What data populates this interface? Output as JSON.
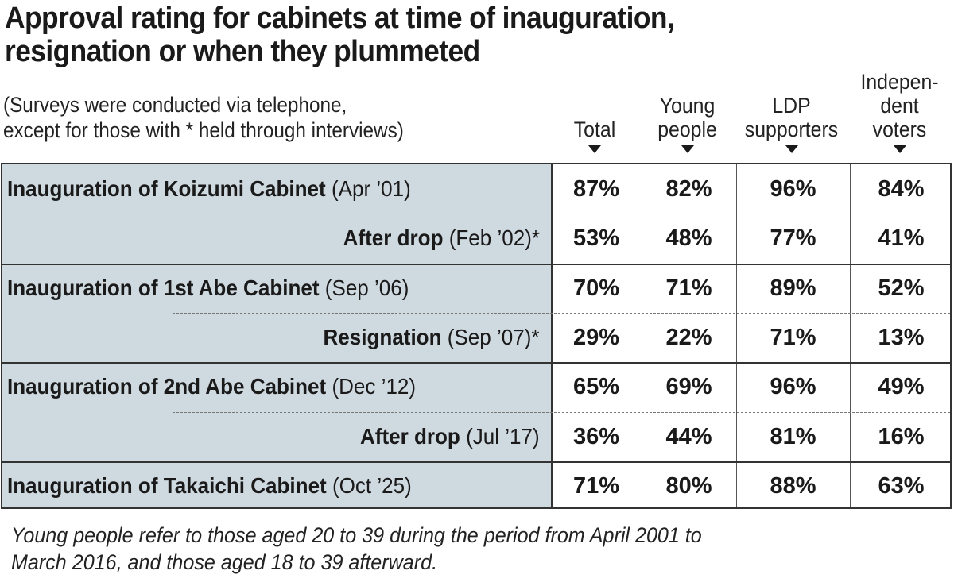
{
  "chart_data": {
    "type": "table",
    "title_line1": "Approval rating for cabinets at time of inauguration,",
    "title_line2": "resignation or when they plummeted",
    "subtitle_line1": "(Surveys were conducted via telephone,",
    "subtitle_line2": "except for those with * held through interviews)",
    "columns": [
      {
        "line1": "",
        "line2": "",
        "line3": "Total"
      },
      {
        "line1": "",
        "line2": "Young",
        "line3": "people"
      },
      {
        "line1": "",
        "line2": "LDP",
        "line3": "supporters"
      },
      {
        "line1": "Indepen-",
        "line2": "dent",
        "line3": "voters"
      }
    ],
    "rows": [
      {
        "label": "Inauguration of Koizumi Cabinet",
        "date": "(Apr ’01)",
        "values": [
          "87%",
          "82%",
          "96%",
          "84%"
        ]
      },
      {
        "label": "After drop",
        "date": "(Feb ’02)*",
        "values": [
          "53%",
          "48%",
          "77%",
          "41%"
        ]
      },
      {
        "label": "Inauguration of 1st Abe Cabinet",
        "date": "(Sep ’06)",
        "values": [
          "70%",
          "71%",
          "89%",
          "52%"
        ]
      },
      {
        "label": "Resignation",
        "date": "(Sep ’07)*",
        "values": [
          "29%",
          "22%",
          "71%",
          "13%"
        ]
      },
      {
        "label": "Inauguration of 2nd Abe Cabinet",
        "date": "(Dec ’12)",
        "values": [
          "65%",
          "69%",
          "96%",
          "49%"
        ]
      },
      {
        "label": "After drop",
        "date": "(Jul ’17)",
        "values": [
          "36%",
          "44%",
          "81%",
          "16%"
        ]
      },
      {
        "label": "Inauguration of Takaichi Cabinet",
        "date": "(Oct ’25)",
        "values": [
          "71%",
          "80%",
          "88%",
          "63%"
        ]
      }
    ],
    "footnote_line1": "Young people refer to those aged 20 to 39 during the period from April 2001 to",
    "footnote_line2": "March 2016, and those aged 18 to 39 afterward.",
    "label_bg_color": "#cfd9e0"
  }
}
